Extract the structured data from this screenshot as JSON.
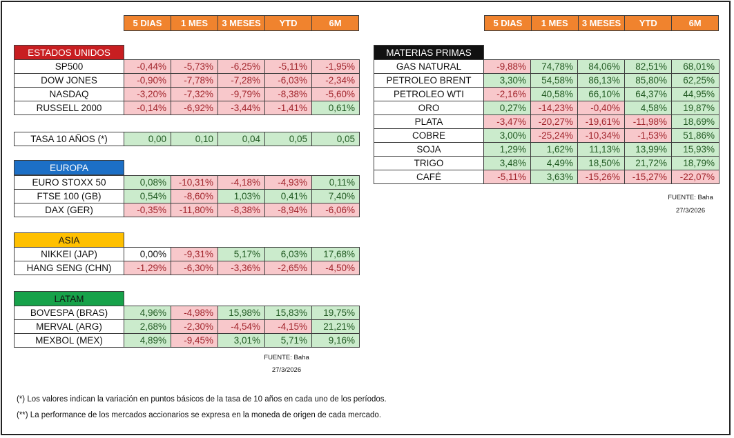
{
  "columns": [
    "5 DIAS",
    "1 MES",
    "3 MESES",
    "YTD",
    "6M"
  ],
  "usa": {
    "title": "ESTADOS UNIDOS",
    "rows": [
      {
        "label": "SP500",
        "values": [
          "-0,44%",
          "-5,73%",
          "-6,25%",
          "-5,11%",
          "-1,95%"
        ],
        "signs": [
          "n",
          "n",
          "n",
          "n",
          "n"
        ]
      },
      {
        "label": "DOW JONES",
        "values": [
          "-0,90%",
          "-7,78%",
          "-7,28%",
          "-6,03%",
          "-2,34%"
        ],
        "signs": [
          "n",
          "n",
          "n",
          "n",
          "n"
        ]
      },
      {
        "label": "NASDAQ",
        "values": [
          "-3,20%",
          "-7,32%",
          "-9,79%",
          "-8,38%",
          "-5,60%"
        ],
        "signs": [
          "n",
          "n",
          "n",
          "n",
          "n"
        ]
      },
      {
        "label": "RUSSELL 2000",
        "values": [
          "-0,14%",
          "-6,92%",
          "-3,44%",
          "-1,41%",
          "0,61%"
        ],
        "signs": [
          "n",
          "n",
          "n",
          "n",
          "p"
        ]
      }
    ]
  },
  "rates": {
    "rows": [
      {
        "label": "TASA 10 AÑOS (*)",
        "values": [
          "0,00",
          "0,10",
          "0,04",
          "0,05",
          "0,05"
        ],
        "signs": [
          "p",
          "p",
          "p",
          "p",
          "p"
        ]
      }
    ]
  },
  "europe": {
    "title": "EUROPA",
    "rows": [
      {
        "label": "EURO STOXX 50",
        "values": [
          "0,08%",
          "-10,31%",
          "-4,18%",
          "-4,93%",
          "0,11%"
        ],
        "signs": [
          "p",
          "n",
          "n",
          "n",
          "p"
        ]
      },
      {
        "label": "FTSE 100 (GB)",
        "values": [
          "0,54%",
          "-8,60%",
          "1,03%",
          "0,41%",
          "7,40%"
        ],
        "signs": [
          "p",
          "n",
          "p",
          "p",
          "p"
        ]
      },
      {
        "label": "DAX (GER)",
        "values": [
          "-0,35%",
          "-11,80%",
          "-8,38%",
          "-8,94%",
          "-6,06%"
        ],
        "signs": [
          "n",
          "n",
          "n",
          "n",
          "n"
        ]
      }
    ]
  },
  "asia": {
    "title": "ASIA",
    "rows": [
      {
        "label": "NIKKEI (JAP)",
        "values": [
          "0,00%",
          "-9,31%",
          "5,17%",
          "6,03%",
          "17,68%"
        ],
        "signs": [
          "z",
          "n",
          "p",
          "p",
          "p"
        ]
      },
      {
        "label": "HANG SENG (CHN)",
        "values": [
          "-1,29%",
          "-6,30%",
          "-3,36%",
          "-2,65%",
          "-4,50%"
        ],
        "signs": [
          "n",
          "n",
          "n",
          "n",
          "n"
        ]
      }
    ]
  },
  "latam": {
    "title": "LATAM",
    "rows": [
      {
        "label": "BOVESPA (BRAS)",
        "values": [
          "4,96%",
          "-4,98%",
          "15,98%",
          "15,83%",
          "19,75%"
        ],
        "signs": [
          "p",
          "n",
          "p",
          "p",
          "p"
        ]
      },
      {
        "label": "MERVAL (ARG)",
        "values": [
          "2,68%",
          "-2,30%",
          "-4,54%",
          "-4,15%",
          "21,21%"
        ],
        "signs": [
          "p",
          "n",
          "n",
          "n",
          "p"
        ]
      },
      {
        "label": "MEXBOL (MEX)",
        "values": [
          "4,89%",
          "-9,45%",
          "3,01%",
          "5,71%",
          "9,16%"
        ],
        "signs": [
          "p",
          "n",
          "p",
          "p",
          "p"
        ]
      }
    ]
  },
  "commodities": {
    "title": "MATERIAS PRIMAS",
    "rows": [
      {
        "label": "GAS NATURAL",
        "values": [
          "-9,88%",
          "74,78%",
          "84,06%",
          "82,51%",
          "68,01%"
        ],
        "signs": [
          "n",
          "p",
          "p",
          "p",
          "p"
        ]
      },
      {
        "label": "PETROLEO BRENT",
        "values": [
          "3,30%",
          "54,58%",
          "86,13%",
          "85,80%",
          "62,25%"
        ],
        "signs": [
          "p",
          "p",
          "p",
          "p",
          "p"
        ]
      },
      {
        "label": "PETROLEO WTI",
        "values": [
          "-2,16%",
          "40,58%",
          "66,10%",
          "64,37%",
          "44,95%"
        ],
        "signs": [
          "n",
          "p",
          "p",
          "p",
          "p"
        ]
      },
      {
        "label": "ORO",
        "values": [
          "0,27%",
          "-14,23%",
          "-0,40%",
          "4,58%",
          "19,87%"
        ],
        "signs": [
          "p",
          "n",
          "n",
          "p",
          "p"
        ]
      },
      {
        "label": "PLATA",
        "values": [
          "-3,47%",
          "-20,27%",
          "-19,61%",
          "-11,98%",
          "18,69%"
        ],
        "signs": [
          "n",
          "n",
          "n",
          "n",
          "p"
        ]
      },
      {
        "label": "COBRE",
        "values": [
          "3,00%",
          "-25,24%",
          "-10,34%",
          "-1,53%",
          "51,86%"
        ],
        "signs": [
          "p",
          "n",
          "n",
          "n",
          "p"
        ]
      },
      {
        "label": "SOJA",
        "values": [
          "1,29%",
          "1,62%",
          "11,13%",
          "13,99%",
          "15,93%"
        ],
        "signs": [
          "p",
          "p",
          "p",
          "p",
          "p"
        ]
      },
      {
        "label": "TRIGO",
        "values": [
          "3,48%",
          "4,49%",
          "18,50%",
          "21,72%",
          "18,79%"
        ],
        "signs": [
          "p",
          "p",
          "p",
          "p",
          "p"
        ]
      },
      {
        "label": "CAFÉ",
        "values": [
          "-5,11%",
          "3,63%",
          "-15,26%",
          "-15,27%",
          "-22,07%"
        ],
        "signs": [
          "n",
          "p",
          "n",
          "n",
          "n"
        ]
      }
    ]
  },
  "source_left": {
    "line1": "FUENTE: Baha",
    "line2": "27/3/2026"
  },
  "source_right": {
    "line1": "FUENTE: Baha",
    "line2": "27/3/2026"
  },
  "notes": [
    "(*) Los valores indican la variación en puntos básicos de la tasa de 10 años en cada uno de los períodos.",
    "(**) La performance de los mercados accionarios se expresa en la moneda de origen de cada mercado."
  ]
}
